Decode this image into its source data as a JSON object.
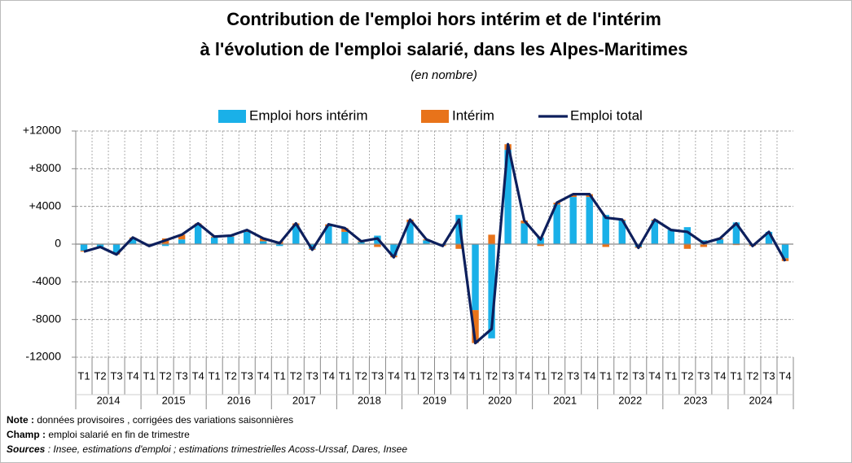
{
  "chart_data": {
    "type": "bar_line",
    "title": [
      "Contribution de l'emploi hors intérim et de l'intérim",
      "à l'évolution de l'emploi salarié, dans les Alpes-Maritimes"
    ],
    "subtitle": "(en nombre)",
    "categories": [
      "T1",
      "T2",
      "T3",
      "T4",
      "T1",
      "T2",
      "T3",
      "T4",
      "T1",
      "T2",
      "T3",
      "T4",
      "T1",
      "T2",
      "T3",
      "T4",
      "T1",
      "T2",
      "T3",
      "T4",
      "T1",
      "T2",
      "T3",
      "T4",
      "T1",
      "T2",
      "T3",
      "T4",
      "T1",
      "T2",
      "T3",
      "T4",
      "T1",
      "T2",
      "T3",
      "T4",
      "T1",
      "T2",
      "T3",
      "T4",
      "T1",
      "T2",
      "T3",
      "T4"
    ],
    "years": [
      "2014",
      "2015",
      "2016",
      "2017",
      "2018",
      "2019",
      "2020",
      "2021",
      "2022",
      "2023",
      "2024"
    ],
    "series": [
      {
        "name": "Emploi hors intérim",
        "color": "#1ab0e8",
        "kind": "bar",
        "values": [
          -700,
          -300,
          -900,
          600,
          -100,
          -200,
          500,
          2100,
          700,
          800,
          1300,
          300,
          -200,
          2000,
          -500,
          1900,
          1300,
          200,
          900,
          -1200,
          2300,
          400,
          -100,
          3100,
          -7000,
          -10000,
          10000,
          2200,
          700,
          4200,
          5000,
          5000,
          3100,
          2500,
          -300,
          2500,
          1500,
          1800,
          400,
          500,
          2300,
          -100,
          1300,
          -1500
        ]
      },
      {
        "name": "Intérim",
        "color": "#e8731a",
        "kind": "bar",
        "values": [
          -100,
          0,
          -200,
          100,
          -100,
          600,
          500,
          100,
          100,
          100,
          200,
          300,
          300,
          200,
          -100,
          200,
          400,
          100,
          -300,
          -200,
          300,
          100,
          -100,
          -500,
          -3500,
          1000,
          600,
          300,
          -200,
          200,
          300,
          300,
          -300,
          100,
          -100,
          100,
          0,
          -500,
          -300,
          100,
          -100,
          -100,
          0,
          -300
        ]
      },
      {
        "name": "Emploi total",
        "color": "#0d1f5c",
        "kind": "line",
        "values": [
          -800,
          -300,
          -1100,
          700,
          -200,
          400,
          1000,
          2200,
          800,
          900,
          1500,
          600,
          100,
          2200,
          -600,
          2100,
          1700,
          300,
          600,
          -1400,
          2600,
          500,
          -200,
          2600,
          -10500,
          -9000,
          10600,
          2500,
          500,
          4400,
          5300,
          5300,
          2800,
          2600,
          -400,
          2600,
          1500,
          1300,
          100,
          600,
          2200,
          -200,
          1300,
          -1800
        ]
      }
    ],
    "ylim": [
      -12000,
      12000
    ],
    "yticks": [
      -12000,
      -8000,
      -4000,
      0,
      {
        "value": 4000,
        "label": "+4000"
      },
      {
        "value": 8000,
        "label": "+8000"
      },
      {
        "value": 12000,
        "label": "+12000"
      }
    ],
    "ytick_colors": {
      "positive": "#1f1fd6",
      "negative": "#e01010",
      "zero": "#000000"
    },
    "grid": true,
    "legend": "top",
    "notes": [
      {
        "label": "Note :",
        "text": " données provisoires , corrigées des variations saisonnières"
      },
      {
        "label": "Champ :",
        "text": " emploi salarié en fin de trimestre"
      },
      {
        "label": "Sources",
        "text": " : Insee, estimations d'emploi ; estimations trimestrielles Acoss-Urssaf, Dares, Insee"
      }
    ]
  }
}
